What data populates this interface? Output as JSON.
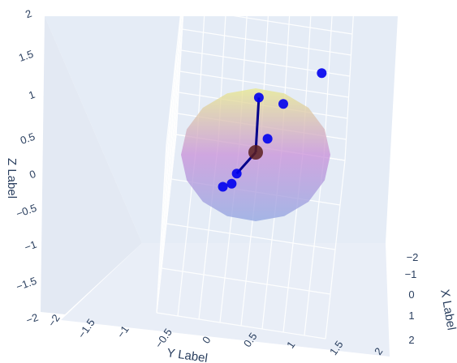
{
  "chart_data": {
    "type": "scatter3d",
    "axes": {
      "x": {
        "title": "X Label",
        "ticks": [
          "−2",
          "−1",
          "0",
          "1",
          "2"
        ],
        "range": [
          -2,
          2
        ]
      },
      "y": {
        "title": "Y Label",
        "ticks": [
          "−2",
          "−1.5",
          "−1",
          "−0.5",
          "0",
          "0.5",
          "1",
          "1.5",
          "2"
        ],
        "range": [
          -2,
          2
        ]
      },
      "z": {
        "title": "Z Label",
        "ticks": [
          "−2",
          "−1.5",
          "−1",
          "−0.5",
          "0",
          "0.5",
          "1",
          "1.5",
          "2"
        ],
        "range": [
          -2,
          2
        ]
      }
    },
    "center": [
      0,
      0,
      0
    ],
    "sphere": {
      "radius": 1,
      "colorscale_top": "#e6e68c",
      "colorscale_mid": "#c48ad9",
      "colorscale_bottom": "#8c9fe0",
      "opacity": 0.75
    },
    "points": [
      {
        "x": 0,
        "y": 0,
        "z": 1.3,
        "connected": true
      },
      {
        "x": 0.3,
        "y": -0.4,
        "z": -0.25,
        "connected": true
      },
      {
        "x": 0.4,
        "y": -0.5,
        "z": -0.4,
        "connected": false
      },
      {
        "x": 0.45,
        "y": -0.7,
        "z": -0.45,
        "connected": false
      },
      {
        "x": -0.2,
        "y": 0.25,
        "z": 0.15,
        "connected": false
      },
      {
        "x": -0.6,
        "y": 0.55,
        "z": 0.6,
        "connected": false
      },
      {
        "x": -0.8,
        "y": 1.4,
        "z": 1.25,
        "connected": false
      }
    ],
    "colors": {
      "point": "#0000ee",
      "line": "#00008b",
      "center": "#5a1e1e",
      "pane": "#e5ecf6",
      "grid": "#ffffff",
      "text": "#2a3f5f"
    },
    "grid": true
  }
}
